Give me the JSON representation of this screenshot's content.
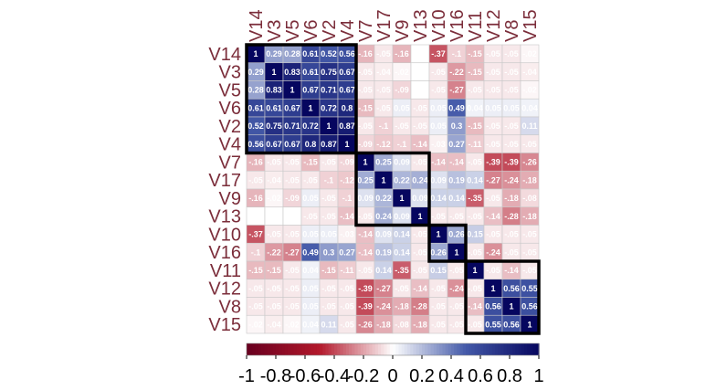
{
  "chart_data": {
    "type": "heatmap",
    "title": "",
    "variables": [
      "V14",
      "V3",
      "V5",
      "V6",
      "V2",
      "V4",
      "V7",
      "V17",
      "V9",
      "V13",
      "V10",
      "V16",
      "V11",
      "V12",
      "V8",
      "V15"
    ],
    "values": [
      [
        1,
        0.29,
        0.28,
        0.61,
        0.52,
        0.56,
        -0.16,
        -0.05,
        -0.16,
        0,
        -0.37,
        -0.1,
        -0.15,
        -0.05,
        -0.05,
        -0.02
      ],
      [
        0.29,
        1,
        0.83,
        0.61,
        0.75,
        0.67,
        -0.05,
        -0.04,
        -0.02,
        0,
        -0.05,
        -0.22,
        -0.15,
        -0.05,
        -0.05,
        -0.04
      ],
      [
        0.28,
        0.83,
        1,
        0.67,
        0.71,
        0.67,
        -0.05,
        -0.05,
        -0.09,
        0,
        -0.05,
        -0.27,
        -0.05,
        -0.05,
        -0.05,
        -0.02
      ],
      [
        0.61,
        0.61,
        0.67,
        1,
        0.72,
        0.8,
        -0.15,
        -0.05,
        0.05,
        -0.05,
        0.05,
        0.49,
        0.04,
        0.05,
        0.05,
        0.04
      ],
      [
        0.52,
        0.75,
        0.71,
        0.72,
        1,
        0.87,
        -0.05,
        -0.1,
        -0.05,
        -0.05,
        0.05,
        0.3,
        -0.15,
        -0.05,
        -0.05,
        0.11
      ],
      [
        0.56,
        0.67,
        0.67,
        0.8,
        0.87,
        1,
        -0.09,
        -0.12,
        -0.1,
        -0.14,
        -0.03,
        0.27,
        -0.11,
        -0.05,
        -0.05,
        -0.05
      ],
      [
        -0.16,
        -0.05,
        -0.05,
        -0.15,
        -0.05,
        -0.09,
        1,
        0.25,
        0.09,
        -0.05,
        -0.14,
        -0.14,
        -0.05,
        -0.39,
        -0.39,
        -0.26
      ],
      [
        -0.05,
        -0.04,
        -0.05,
        -0.05,
        -0.1,
        -0.12,
        0.25,
        1,
        0.22,
        0.24,
        0.09,
        0.19,
        0.14,
        -0.27,
        -0.24,
        -0.18
      ],
      [
        -0.16,
        -0.02,
        -0.09,
        0.05,
        -0.05,
        -0.1,
        0.09,
        0.22,
        1,
        0.09,
        0.14,
        0.14,
        -0.35,
        -0.05,
        -0.18,
        -0.08
      ],
      [
        0,
        0,
        0,
        -0.05,
        -0.05,
        -0.14,
        -0.05,
        0.24,
        0.09,
        1,
        -0.05,
        -0.05,
        -0.05,
        -0.14,
        -0.28,
        -0.18
      ],
      [
        -0.37,
        -0.05,
        -0.05,
        0.05,
        0.05,
        -0.03,
        -0.14,
        0.09,
        0.14,
        -0.05,
        1,
        0.26,
        0.15,
        -0.05,
        -0.05,
        -0.05
      ],
      [
        -0.1,
        -0.22,
        -0.27,
        0.49,
        0.3,
        0.27,
        -0.14,
        0.19,
        0.14,
        -0.05,
        0.26,
        1,
        -0.05,
        -0.24,
        -0.05,
        -0.05
      ],
      [
        -0.15,
        -0.15,
        -0.05,
        0.04,
        -0.15,
        -0.11,
        -0.05,
        0.14,
        -0.35,
        -0.05,
        0.15,
        -0.05,
        1,
        -0.05,
        -0.14,
        -0.05
      ],
      [
        -0.05,
        -0.05,
        -0.05,
        0.05,
        -0.05,
        -0.05,
        -0.39,
        -0.27,
        -0.05,
        -0.14,
        -0.05,
        -0.24,
        -0.05,
        1,
        0.56,
        0.55
      ],
      [
        -0.05,
        -0.05,
        -0.05,
        0.05,
        -0.05,
        -0.05,
        -0.39,
        -0.24,
        -0.18,
        -0.28,
        -0.05,
        -0.05,
        -0.14,
        0.56,
        1,
        0.56
      ],
      [
        -0.02,
        -0.04,
        -0.02,
        0.04,
        0.11,
        -0.05,
        -0.26,
        -0.18,
        -0.08,
        -0.18,
        -0.05,
        -0.05,
        -0.05,
        0.55,
        0.56,
        1
      ]
    ],
    "clusters": [
      [
        0,
        5
      ],
      [
        6,
        9
      ],
      [
        10,
        11
      ],
      [
        12,
        15
      ]
    ],
    "colorbar": {
      "range": [
        -1,
        1
      ],
      "tick_labels": [
        "-1",
        "-0.8",
        "-0.6",
        "-0.4",
        "-0.2",
        "0",
        "0.2",
        "0.4",
        "0.6",
        "0.8",
        "1"
      ],
      "low_color": "#67001f",
      "mid_color": "#ffffff",
      "high_color": "#06065f"
    },
    "label_color": "#7b2d3a",
    "legend": "bottom"
  }
}
